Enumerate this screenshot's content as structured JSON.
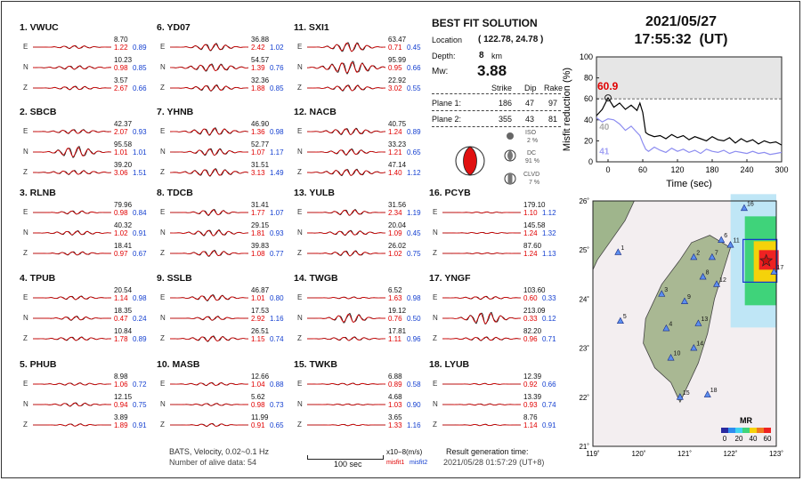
{
  "date": "2021/05/27",
  "time": "17:55:32  (UT)",
  "best_fit": {
    "title": "BEST FIT SOLUTION",
    "location_label": "Location",
    "location_value": "( 122.78, 24.78 )",
    "depth_label": "Depth:",
    "depth_value": "8",
    "depth_unit": "km",
    "mw_label": "Mw:",
    "mw_value": "3.88",
    "headers": [
      "Strike",
      "Dip",
      "Rake"
    ],
    "plane1_label": "Plane 1:",
    "plane1": [
      "186",
      "47",
      "97"
    ],
    "plane2_label": "Plane 2:",
    "plane2": [
      "355",
      "43",
      "81"
    ],
    "iso_label": "ISO",
    "iso_value": "2 %",
    "dc_label": "DC",
    "dc_value": "91 %",
    "clvd_label": "CLVD",
    "clvd_value": "7 %"
  },
  "stations": [
    {
      "label": "1.  VWUC",
      "rows": [
        {
          "comp": "E",
          "amp": "8.70",
          "m1": "1.22",
          "m2": "0.89"
        },
        {
          "comp": "N",
          "amp": "10.23",
          "m1": "0.98",
          "m2": "0.85"
        },
        {
          "comp": "Z",
          "amp": "3.57",
          "m1": "2.67",
          "m2": "0.66"
        }
      ]
    },
    {
      "label": "2.  SBCB",
      "rows": [
        {
          "comp": "E",
          "amp": "42.37",
          "m1": "2.07",
          "m2": "0.93"
        },
        {
          "comp": "N",
          "amp": "95.58",
          "m1": "1.01",
          "m2": "1.01"
        },
        {
          "comp": "Z",
          "amp": "39.20",
          "m1": "3.06",
          "m2": "1.51"
        }
      ]
    },
    {
      "label": "3.  RLNB",
      "rows": [
        {
          "comp": "E",
          "amp": "79.96",
          "m1": "0.98",
          "m2": "0.84"
        },
        {
          "comp": "N",
          "amp": "40.32",
          "m1": "1.02",
          "m2": "0.91"
        },
        {
          "comp": "Z",
          "amp": "18.41",
          "m1": "0.97",
          "m2": "0.67"
        }
      ]
    },
    {
      "label": "4.  TPUB",
      "rows": [
        {
          "comp": "E",
          "amp": "20.54",
          "m1": "1.14",
          "m2": "0.98"
        },
        {
          "comp": "N",
          "amp": "18.35",
          "m1": "0.47",
          "m2": "0.24"
        },
        {
          "comp": "Z",
          "amp": "10.84",
          "m1": "1.78",
          "m2": "0.89"
        }
      ]
    },
    {
      "label": "5.  PHUB",
      "rows": [
        {
          "comp": "E",
          "amp": "8.98",
          "m1": "1.06",
          "m2": "0.72"
        },
        {
          "comp": "N",
          "amp": "12.15",
          "m1": "0.94",
          "m2": "0.75"
        },
        {
          "comp": "Z",
          "amp": "3.89",
          "m1": "1.89",
          "m2": "0.91"
        }
      ]
    },
    {
      "label": "6.  YD07",
      "rows": [
        {
          "comp": "E",
          "amp": "36.88",
          "m1": "2.42",
          "m2": "1.02"
        },
        {
          "comp": "N",
          "amp": "54.57",
          "m1": "1.39",
          "m2": "0.76"
        },
        {
          "comp": "Z",
          "amp": "32.36",
          "m1": "1.88",
          "m2": "0.85"
        }
      ]
    },
    {
      "label": "7.  YHNB",
      "rows": [
        {
          "comp": "E",
          "amp": "46.90",
          "m1": "1.36",
          "m2": "0.98"
        },
        {
          "comp": "N",
          "amp": "52.77",
          "m1": "1.07",
          "m2": "1.17"
        },
        {
          "comp": "Z",
          "amp": "31.51",
          "m1": "3.13",
          "m2": "1.49"
        }
      ]
    },
    {
      "label": "8.  TDCB",
      "rows": [
        {
          "comp": "E",
          "amp": "31.41",
          "m1": "1.77",
          "m2": "1.07"
        },
        {
          "comp": "N",
          "amp": "29.15",
          "m1": "1.81",
          "m2": "0.93"
        },
        {
          "comp": "Z",
          "amp": "39.83",
          "m1": "1.08",
          "m2": "0.77"
        }
      ]
    },
    {
      "label": "9.  SSLB",
      "rows": [
        {
          "comp": "E",
          "amp": "46.87",
          "m1": "1.01",
          "m2": "0.80"
        },
        {
          "comp": "N",
          "amp": "17.53",
          "m1": "2.92",
          "m2": "1.16"
        },
        {
          "comp": "Z",
          "amp": "26.51",
          "m1": "1.15",
          "m2": "0.74"
        }
      ]
    },
    {
      "label": "10. MASB",
      "rows": [
        {
          "comp": "E",
          "amp": "12.66",
          "m1": "1.04",
          "m2": "0.88"
        },
        {
          "comp": "N",
          "amp": "5.62",
          "m1": "0.98",
          "m2": "0.73"
        },
        {
          "comp": "Z",
          "amp": "11.99",
          "m1": "0.91",
          "m2": "0.65"
        }
      ]
    },
    {
      "label": "11. SXI1",
      "rows": [
        {
          "comp": "E",
          "amp": "63.47",
          "m1": "0.71",
          "m2": "0.45"
        },
        {
          "comp": "N",
          "amp": "95.99",
          "m1": "0.95",
          "m2": "0.66"
        },
        {
          "comp": "Z",
          "amp": "22.92",
          "m1": "3.02",
          "m2": "0.55"
        }
      ]
    },
    {
      "label": "12. NACB",
      "rows": [
        {
          "comp": "E",
          "amp": "40.75",
          "m1": "1.24",
          "m2": "0.89"
        },
        {
          "comp": "N",
          "amp": "33.23",
          "m1": "1.21",
          "m2": "0.65"
        },
        {
          "comp": "Z",
          "amp": "47.14",
          "m1": "1.40",
          "m2": "1.12"
        }
      ]
    },
    {
      "label": "13. YULB",
      "rows": [
        {
          "comp": "E",
          "amp": "31.56",
          "m1": "2.34",
          "m2": "1.19"
        },
        {
          "comp": "N",
          "amp": "20.04",
          "m1": "1.09",
          "m2": "0.45"
        },
        {
          "comp": "Z",
          "amp": "26.02",
          "m1": "1.02",
          "m2": "0.75"
        }
      ]
    },
    {
      "label": "14. TWGB",
      "rows": [
        {
          "comp": "E",
          "amp": "6.52",
          "m1": "1.63",
          "m2": "0.98"
        },
        {
          "comp": "N",
          "amp": "19.12",
          "m1": "0.76",
          "m2": "0.50"
        },
        {
          "comp": "Z",
          "amp": "17.81",
          "m1": "1.11",
          "m2": "0.96"
        }
      ]
    },
    {
      "label": "15. TWKB",
      "rows": [
        {
          "comp": "E",
          "amp": "6.88",
          "m1": "0.89",
          "m2": "0.58"
        },
        {
          "comp": "N",
          "amp": "4.68",
          "m1": "1.03",
          "m2": "0.90"
        },
        {
          "comp": "Z",
          "amp": "3.65",
          "m1": "1.33",
          "m2": "1.16"
        }
      ]
    },
    {
      "label": "16. PCYB",
      "rows": [
        {
          "comp": "E",
          "amp": "179.10",
          "m1": "1.10",
          "m2": "1.12"
        },
        {
          "comp": "N",
          "amp": "145.58",
          "m1": "1.24",
          "m2": "1.32"
        },
        {
          "comp": "Z",
          "amp": "87.60",
          "m1": "1.24",
          "m2": "1.13"
        }
      ]
    },
    {
      "label": "17. YNGF",
      "rows": [
        {
          "comp": "E",
          "amp": "103.60",
          "m1": "0.60",
          "m2": "0.33"
        },
        {
          "comp": "N",
          "amp": "213.09",
          "m1": "0.33",
          "m2": "0.12"
        },
        {
          "comp": "Z",
          "amp": "82.20",
          "m1": "0.96",
          "m2": "0.71"
        }
      ]
    },
    {
      "label": "18. LYUB",
      "rows": [
        {
          "comp": "E",
          "amp": "12.39",
          "m1": "0.92",
          "m2": "0.66"
        },
        {
          "comp": "N",
          "amp": "13.39",
          "m1": "0.93",
          "m2": "0.74"
        },
        {
          "comp": "Z",
          "amp": "8.76",
          "m1": "1.14",
          "m2": "0.91"
        }
      ]
    }
  ],
  "footer": {
    "bats": "BATS, Velocity, 0.02~0.1 Hz",
    "alive": "Number of alive data: 54",
    "scale_label": "100 sec",
    "units": "x10−8(m/s)",
    "misfit1": "misfit1",
    "misfit2": "misfit2",
    "result_label": "Result generation time:",
    "result_time": "2021/05/28 01:57:29 (UT+8)"
  },
  "chart_data": [
    {
      "type": "line",
      "title": "",
      "xlabel": "Time (sec)",
      "ylabel": "Misfit reduction (%)",
      "xlim": [
        -20,
        300
      ],
      "ylim": [
        0,
        100
      ],
      "xticks": [
        0,
        60,
        120,
        180,
        240,
        300
      ],
      "yticks": [
        0,
        20,
        40,
        60,
        80,
        100
      ],
      "hline": 60,
      "annotations": [
        "60.9",
        "40",
        "41"
      ],
      "series": [
        {
          "name": "",
          "color": "#000000",
          "x": [
            -20,
            -10,
            0,
            10,
            20,
            30,
            40,
            50,
            55,
            60,
            65,
            70,
            80,
            90,
            100,
            110,
            120,
            130,
            140,
            150,
            160,
            170,
            180,
            190,
            200,
            210,
            220,
            230,
            240,
            250,
            260,
            270,
            280,
            290,
            300
          ],
          "y": [
            44,
            50,
            60.9,
            52,
            56,
            50,
            54,
            49,
            56,
            47,
            28,
            26,
            24,
            25,
            22,
            26,
            23,
            25,
            21,
            24,
            22,
            20,
            24,
            21,
            20,
            23,
            18,
            22,
            19,
            21,
            17,
            20,
            18,
            19,
            16
          ]
        },
        {
          "name": "",
          "color": "#8c8cf0",
          "x": [
            -20,
            -10,
            0,
            10,
            20,
            30,
            40,
            50,
            55,
            60,
            65,
            70,
            80,
            90,
            100,
            110,
            120,
            130,
            140,
            150,
            160,
            170,
            180,
            190,
            200,
            210,
            220,
            230,
            240,
            250,
            260,
            270,
            280,
            290,
            300
          ],
          "y": [
            42,
            38,
            41,
            40,
            36,
            30,
            34,
            28,
            25,
            18,
            12,
            10,
            14,
            11,
            9,
            13,
            10,
            12,
            9,
            11,
            8,
            12,
            10,
            9,
            11,
            8,
            10,
            9,
            8,
            10,
            8,
            9,
            7,
            8,
            9
          ]
        }
      ]
    },
    {
      "type": "map",
      "xticks": [
        "119˚",
        "120˚",
        "121˚",
        "122˚",
        "123˚"
      ],
      "yticks": [
        "21˚",
        "22˚",
        "23˚",
        "24˚",
        "25˚",
        "26˚"
      ],
      "xlim": [
        119,
        123
      ],
      "ylim": [
        21,
        26
      ],
      "colorbar_label": "MR",
      "colorbar_ticks": [
        "0",
        "20",
        "40",
        "60"
      ],
      "epicenter": [
        122.78,
        24.78
      ],
      "stations": [
        {
          "id": "1",
          "lon": 119.55,
          "lat": 24.95
        },
        {
          "id": "2",
          "lon": 121.2,
          "lat": 24.85
        },
        {
          "id": "3",
          "lon": 120.5,
          "lat": 24.1
        },
        {
          "id": "4",
          "lon": 120.6,
          "lat": 23.4
        },
        {
          "id": "5",
          "lon": 119.6,
          "lat": 23.55
        },
        {
          "id": "6",
          "lon": 121.8,
          "lat": 25.2
        },
        {
          "id": "7",
          "lon": 121.6,
          "lat": 24.85
        },
        {
          "id": "8",
          "lon": 121.4,
          "lat": 24.45
        },
        {
          "id": "9",
          "lon": 121.0,
          "lat": 23.95
        },
        {
          "id": "10",
          "lon": 120.7,
          "lat": 22.8
        },
        {
          "id": "11",
          "lon": 122.0,
          "lat": 25.1
        },
        {
          "id": "12",
          "lon": 121.7,
          "lat": 24.3
        },
        {
          "id": "13",
          "lon": 121.3,
          "lat": 23.5
        },
        {
          "id": "14",
          "lon": 121.2,
          "lat": 23.0
        },
        {
          "id": "15",
          "lon": 120.9,
          "lat": 22.0
        },
        {
          "id": "16",
          "lon": 122.3,
          "lat": 25.85
        },
        {
          "id": "17",
          "lon": 122.95,
          "lat": 24.55
        },
        {
          "id": "18",
          "lon": 121.5,
          "lat": 22.05
        }
      ]
    }
  ]
}
